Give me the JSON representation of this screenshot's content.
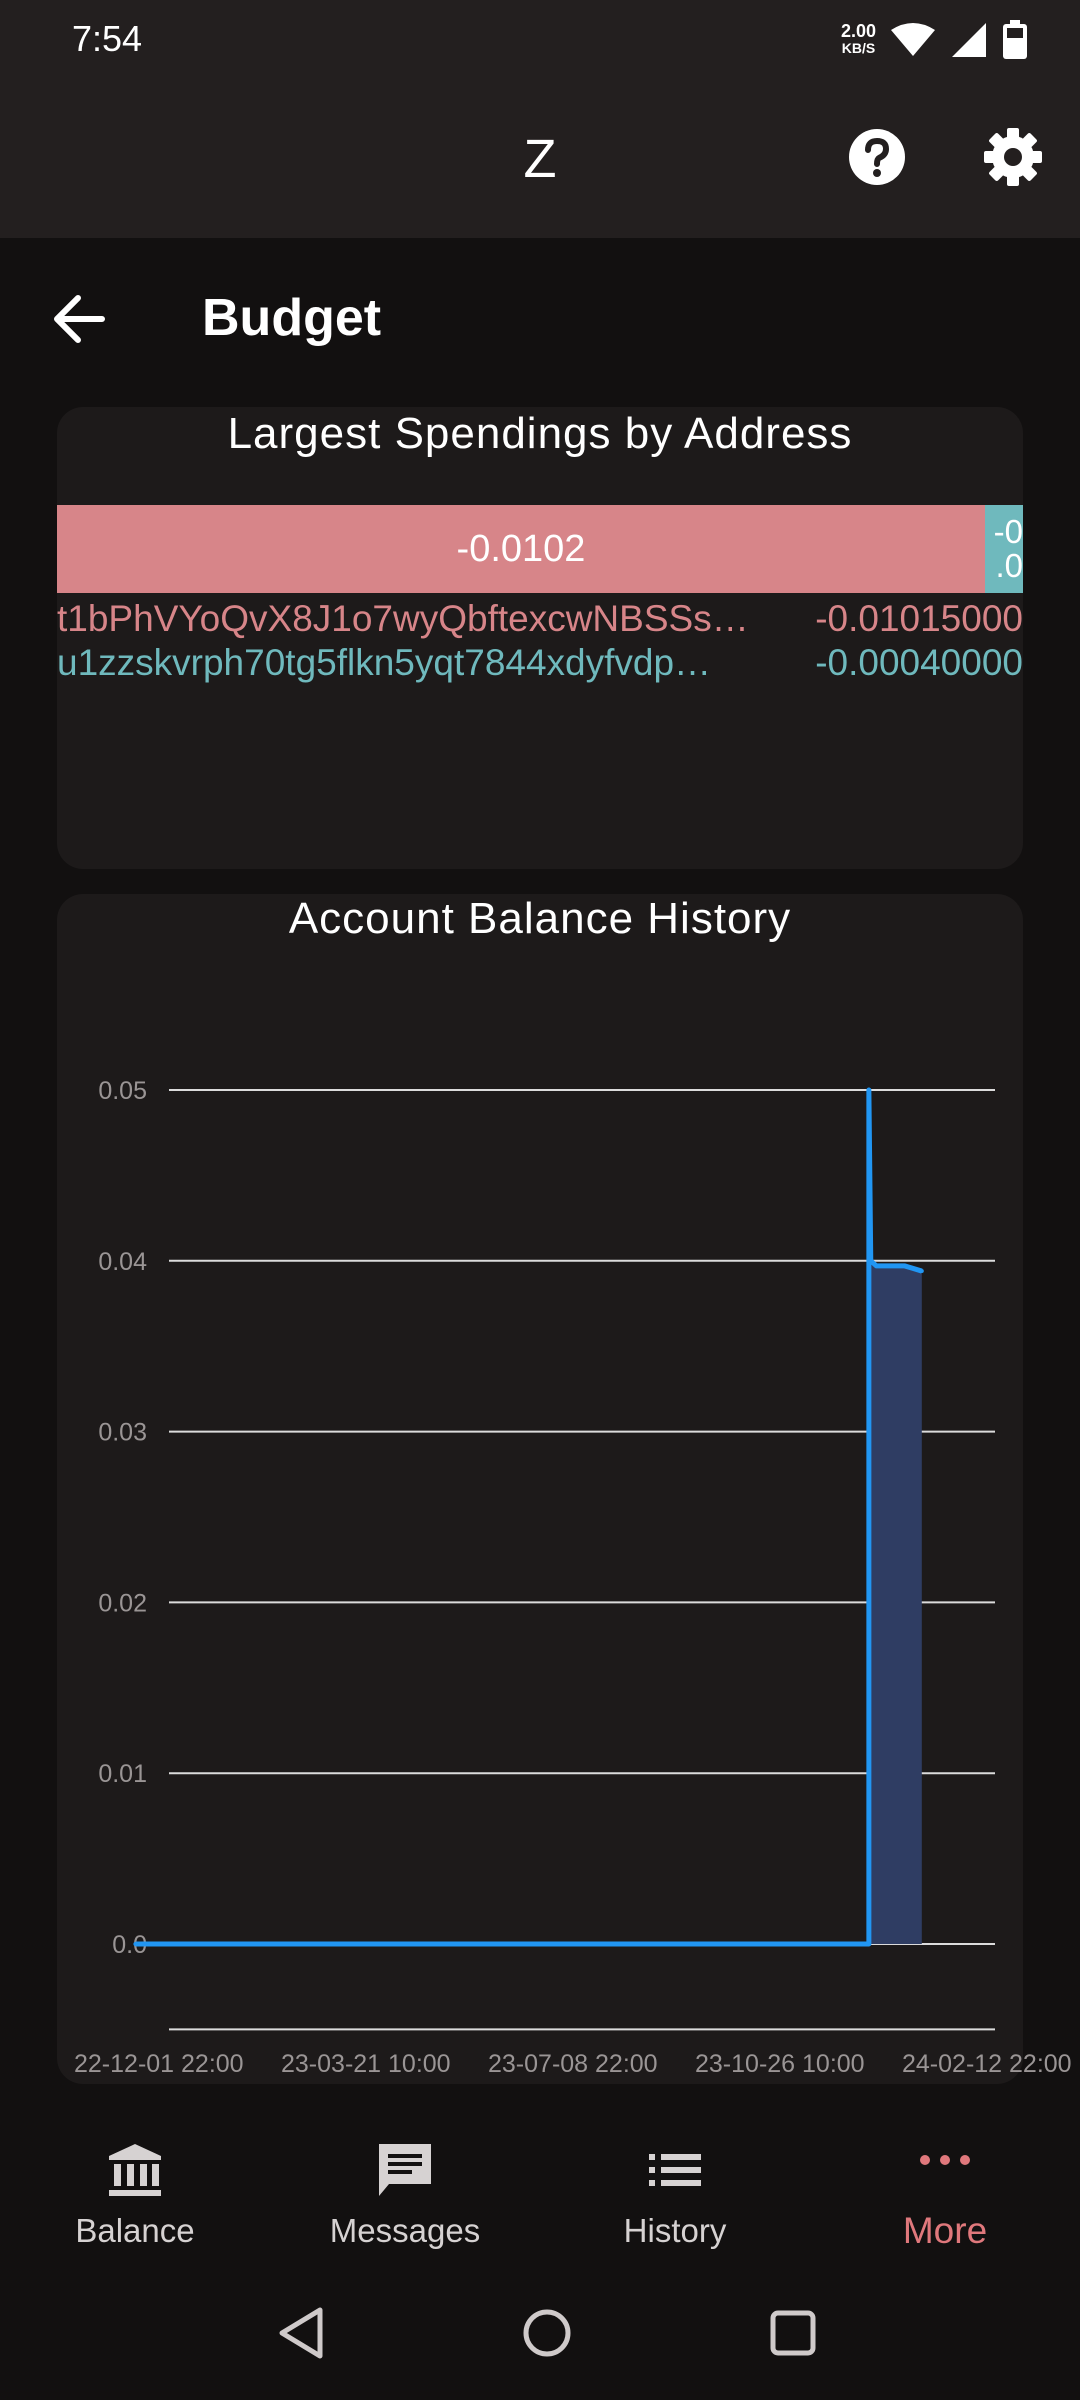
{
  "status": {
    "time": "7:54",
    "net_speed_value": "2.00",
    "net_speed_unit": "KB/S"
  },
  "app": {
    "title": "Z"
  },
  "page": {
    "title": "Budget"
  },
  "spendings": {
    "title": "Largest Spendings by Address",
    "bars": [
      {
        "label": "-0.0102",
        "value": -0.0102,
        "color": "#d78589"
      },
      {
        "label_line1": "-0",
        "label_line2": ".0",
        "value": -0.0004,
        "color": "#6fb9bd"
      }
    ],
    "rows": [
      {
        "address": "t1bPhVYoQvX8J1o7wyQbftexcwNBSSs…",
        "amount": "-0.01015000",
        "color": "#d78589"
      },
      {
        "address": "u1zzskvrph70tg5flkn5yqt7844xdyfvdp…",
        "amount": "-0.00040000",
        "color": "#6fb9bd"
      }
    ]
  },
  "chart_data": {
    "type": "line",
    "title": "Account Balance History",
    "xlabel": "",
    "ylabel": "",
    "yticks": [
      "0.05",
      "0.04",
      "0.03",
      "0.02",
      "0.01",
      "0.0"
    ],
    "xticks": [
      "22-12-01 22:00",
      "23-03-21 10:00",
      "23-07-08 22:00",
      "23-10-26 10:00",
      "24-02-12 22:00"
    ],
    "ylim": [
      -0.005,
      0.05
    ],
    "grid": true,
    "line_color": "#2196f3",
    "fill_color": "#2f3d63",
    "series": [
      {
        "x": [
          "2022-12-09",
          "2024-01-01",
          "2024-01-01",
          "2024-01-02",
          "2024-01-05",
          "2024-01-20",
          "2024-01-29"
        ],
        "values": [
          0.0,
          0.0,
          0.05,
          0.04,
          0.0397,
          0.0397,
          0.0394
        ]
      }
    ]
  },
  "nav": {
    "items": [
      {
        "label": "Balance",
        "icon": "bank-icon"
      },
      {
        "label": "Messages",
        "icon": "message-icon"
      },
      {
        "label": "History",
        "icon": "list-icon"
      },
      {
        "label": "More",
        "icon": "more-dots-icon"
      }
    ],
    "active_index": 3,
    "active_color": "#e0787c"
  }
}
